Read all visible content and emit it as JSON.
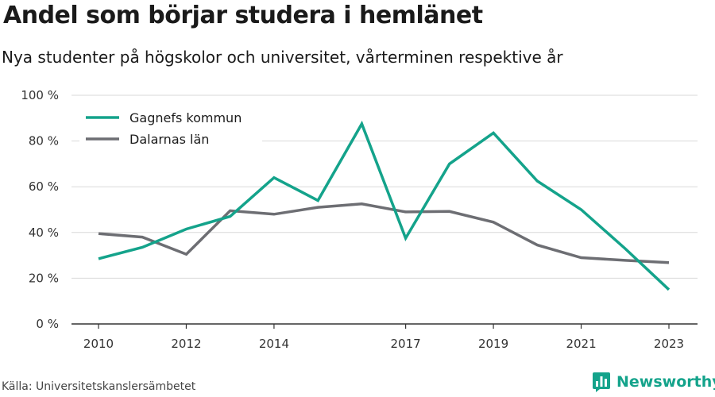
{
  "title": "Andel som börjar studera i hemlänet",
  "subtitle": "Nya studenter på högskolor och universitet, vårterminen respektive år",
  "source": "Källa: Universitetskanslersämbetet",
  "brand": {
    "name": "Newsworthy",
    "icon": "bar-chart-logo-icon"
  },
  "colors": {
    "series1": "#14a38b",
    "series2": "#6d6e73",
    "grid": "#d9d9d9",
    "axis": "#333333"
  },
  "chart_data": {
    "type": "line",
    "title": "Andel som börjar studera i hemlänet",
    "subtitle": "Nya studenter på högskolor och universitet, vårterminen respektive år",
    "x": [
      2010,
      2011,
      2012,
      2013,
      2014,
      2015,
      2016,
      2017,
      2018,
      2019,
      2020,
      2021,
      2022,
      2023
    ],
    "x_tick_labels": [
      "2010",
      "2012",
      "2014",
      "2017",
      "2019",
      "2021",
      "2023"
    ],
    "y_tick_labels": [
      "0 %",
      "20 %",
      "40 %",
      "60 %",
      "80 %",
      "100 %"
    ],
    "ylim": [
      0,
      100
    ],
    "xlim": [
      2010,
      2023
    ],
    "grid": true,
    "legend": "top-left",
    "series": [
      {
        "name": "Gagnefs kommun",
        "color": "#14a38b",
        "values": [
          28.5,
          33.5,
          41.5,
          47,
          64,
          54,
          87.5,
          37.5,
          70,
          83.5,
          62.5,
          50,
          33,
          15
        ]
      },
      {
        "name": "Dalarnas län",
        "color": "#6d6e73",
        "values": [
          39.5,
          38,
          30.5,
          49.5,
          48,
          51,
          52.5,
          49,
          49.2,
          44.5,
          34.5,
          29,
          27.8,
          26.8
        ]
      }
    ]
  }
}
